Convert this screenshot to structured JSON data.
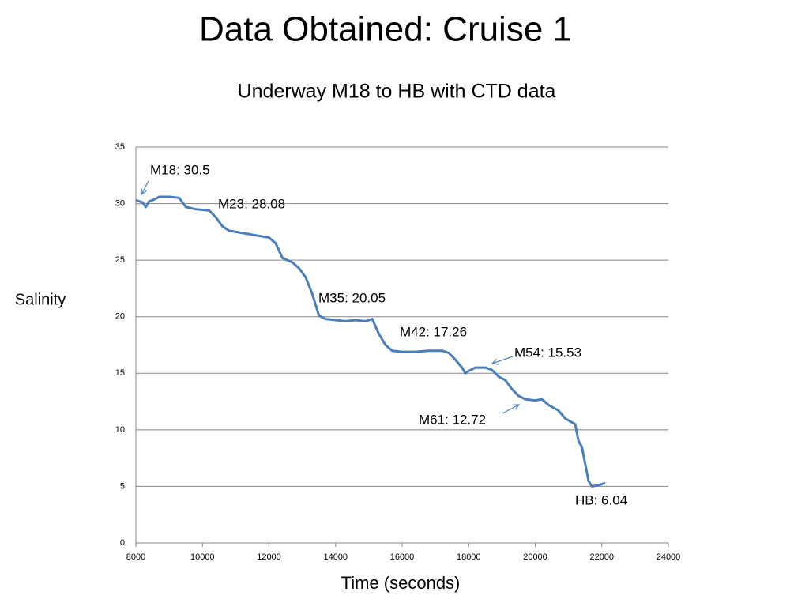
{
  "chart_data": {
    "type": "line",
    "title": "Data Obtained: Cruise 1",
    "subtitle": "Underway M18 to HB with CTD data",
    "x_label": "Time (seconds)",
    "y_label": "Salinity",
    "color": "#4a7ebb",
    "grid": true,
    "xlim": [
      8000,
      24000
    ],
    "ylim": [
      0,
      35
    ],
    "xticks": [
      8000,
      10000,
      12000,
      14000,
      16000,
      18000,
      20000,
      22000,
      24000
    ],
    "yticks": [
      0,
      5,
      10,
      15,
      20,
      25,
      30,
      35
    ],
    "x": [
      8000,
      8200,
      8300,
      8400,
      8500,
      8700,
      9000,
      9300,
      9500,
      9800,
      10200,
      10400,
      10600,
      10800,
      11000,
      11200,
      11400,
      11600,
      11800,
      12000,
      12200,
      12400,
      12700,
      12900,
      13100,
      13300,
      13500,
      13700,
      14000,
      14300,
      14600,
      14900,
      15100,
      15300,
      15500,
      15700,
      16000,
      16400,
      16800,
      17200,
      17400,
      17600,
      17800,
      17900,
      18000,
      18200,
      18500,
      18700,
      18900,
      19100,
      19300,
      19500,
      19700,
      20000,
      20200,
      20400,
      20700,
      20900,
      21200,
      21300,
      21400,
      21500,
      21600,
      21700,
      21900,
      22100
    ],
    "values": [
      30.3,
      30.1,
      29.7,
      30.2,
      30.3,
      30.6,
      30.6,
      30.5,
      29.7,
      29.5,
      29.4,
      28.8,
      28.0,
      27.6,
      27.5,
      27.4,
      27.3,
      27.2,
      27.1,
      27.0,
      26.5,
      25.2,
      24.8,
      24.3,
      23.5,
      22.0,
      20.1,
      19.8,
      19.7,
      19.6,
      19.7,
      19.6,
      19.8,
      18.5,
      17.5,
      17.0,
      16.9,
      16.9,
      17.0,
      17.0,
      16.8,
      16.2,
      15.5,
      15.0,
      15.2,
      15.5,
      15.5,
      15.3,
      14.7,
      14.4,
      13.6,
      13.0,
      12.7,
      12.6,
      12.7,
      12.2,
      11.7,
      11.0,
      10.5,
      9.0,
      8.5,
      7.0,
      5.5,
      5.0,
      5.1,
      5.3
    ],
    "annotations": [
      "M18: 30.5",
      "M23: 28.08",
      "M35: 20.05",
      "M42: 17.26",
      "M54: 15.53",
      "M61: 12.72",
      "HB: 6.04"
    ]
  }
}
